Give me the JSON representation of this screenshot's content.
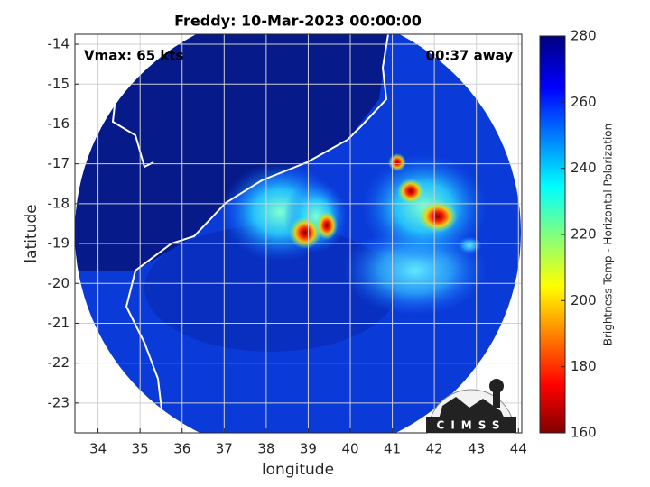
{
  "title": "Freddy: 10-Mar-2023 00:00:00",
  "annotations": {
    "vmax": "Vmax: 65 kts",
    "time": "00:37 away"
  },
  "map": {
    "xlabel": "longitude",
    "ylabel": "latitude",
    "xlim": [
      33.45,
      44.08
    ],
    "ylim": [
      -23.75,
      -13.75
    ],
    "xticks": [
      34,
      35,
      36,
      37,
      38,
      39,
      40,
      41,
      42,
      43,
      44
    ],
    "yticks": [
      -14,
      -15,
      -16,
      -17,
      -18,
      -19,
      -20,
      -21,
      -22,
      -23
    ],
    "grid": true
  },
  "colorbar": {
    "label": "Brightness Temp - Horizontal Polarization",
    "lim": [
      160,
      280
    ],
    "ticks": [
      160,
      180,
      200,
      220,
      240,
      260,
      280
    ]
  },
  "logo": "CIMSS"
}
